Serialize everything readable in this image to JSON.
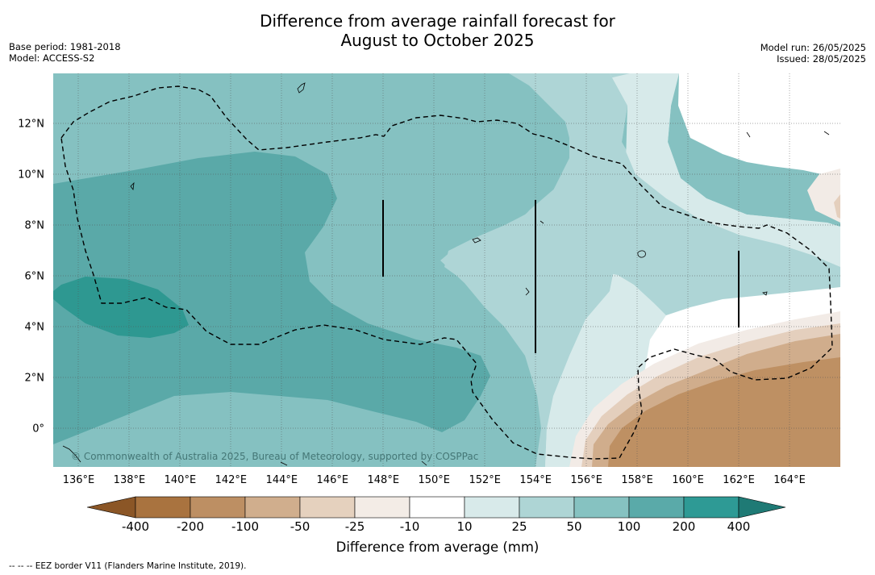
{
  "title_line1": "Difference from average rainfall forecast for",
  "title_line2": "August to October 2025",
  "meta_left": {
    "base_period": "Base period: 1981-2018",
    "model": "Model: ACCESS-S2"
  },
  "meta_right": {
    "model_run": "Model run: 26/05/2025",
    "issued": "Issued: 28/05/2025"
  },
  "map": {
    "lon_range": [
      135,
      166
    ],
    "lat_range": [
      -1.5,
      14
    ],
    "lon_ticks": [
      "136°E",
      "138°E",
      "140°E",
      "142°E",
      "144°E",
      "146°E",
      "148°E",
      "150°E",
      "152°E",
      "154°E",
      "156°E",
      "158°E",
      "160°E",
      "162°E",
      "164°E"
    ],
    "lat_ticks": [
      "12°N",
      "10°N",
      "8°N",
      "6°N",
      "4°N",
      "2°N",
      "0°"
    ],
    "copyright": "© Commonwealth of Australia 2025, Bureau of Meteorology, supported by COSPPac",
    "colors": {
      "wet400": "#2e9891",
      "wet200": "#5aa9a8",
      "wet100": "#85c1c1",
      "wet50": "#aed5d6",
      "wet25": "#d7eaea",
      "neutral": "#ffffff",
      "dry25": "#f2ebe6",
      "dry50": "#e4cfbd",
      "dry100": "#d0ad8c",
      "dry200": "#be9063"
    }
  },
  "colorbar": {
    "labels": [
      "-400",
      "-200",
      "-100",
      "-50",
      "-25",
      "-10",
      "10",
      "25",
      "50",
      "100",
      "200",
      "400"
    ],
    "colors": [
      "#a9733f",
      "#bd8f63",
      "#d0ae8d",
      "#e5d1be",
      "#f3ece6",
      "#ffffff",
      "#d8eaea",
      "#aed5d5",
      "#86c2c1",
      "#5aaaa9",
      "#2e9a95"
    ],
    "extend_low": "#8b5626",
    "extend_high": "#1f7a75",
    "title": "Difference from average (mm)"
  },
  "footnote": "--  --  -- EEZ border V11 (Flanders Marine Institute, 2019)."
}
